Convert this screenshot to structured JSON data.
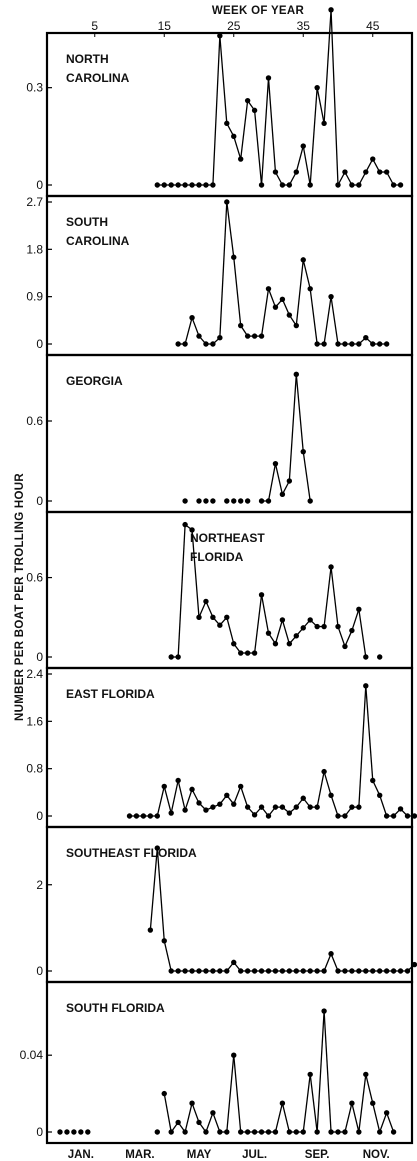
{
  "chart_data": {
    "type": "line",
    "top_axis": {
      "title": "WEEK OF YEAR",
      "ticks": [
        {
          "label": "5",
          "week": 5
        },
        {
          "label": "15",
          "week": 15
        },
        {
          "label": "25",
          "week": 25
        },
        {
          "label": "35",
          "week": 35
        },
        {
          "label": "45",
          "week": 45
        }
      ]
    },
    "bottom_axis": {
      "ticks": [
        {
          "label": "JAN.",
          "week": 3
        },
        {
          "label": "MAR.",
          "week": 11.5
        },
        {
          "label": "MAY",
          "week": 20
        },
        {
          "label": "JUL.",
          "week": 28
        },
        {
          "label": "SEP.",
          "week": 37
        },
        {
          "label": "NOV.",
          "week": 45.5
        }
      ]
    },
    "ylabel": "NUMBER PER BOAT PER TROLLING HOUR",
    "xlim": [
      0,
      52
    ],
    "panels": [
      {
        "name_lines": [
          "NORTH",
          "CAROLINA"
        ],
        "ylim": [
          0,
          0.45
        ],
        "yticks": [
          {
            "value": 0,
            "label": "0"
          },
          {
            "value": 0.3,
            "label": "0.3"
          }
        ],
        "x": [
          14,
          15,
          16,
          17,
          18,
          19,
          20,
          21,
          22,
          23,
          24,
          25,
          26,
          27,
          28,
          29,
          30,
          31,
          32,
          33,
          34,
          35,
          36,
          37,
          38,
          39,
          40,
          41,
          42,
          43,
          44,
          45,
          46,
          47,
          48,
          49
        ],
        "y": [
          0,
          0,
          0,
          0,
          0,
          0,
          0,
          0,
          0,
          0.46,
          0.19,
          0.15,
          0.08,
          0.26,
          0.23,
          0,
          0.33,
          0.04,
          0,
          0,
          0.04,
          0.12,
          0,
          0.3,
          0.19,
          0.54,
          0,
          0.04,
          0,
          0,
          0.04,
          0.08,
          0.04,
          0.04,
          0,
          0
        ],
        "breaks": []
      },
      {
        "name_lines": [
          "SOUTH",
          "CAROLINA"
        ],
        "ylim": [
          0,
          2.7
        ],
        "yticks": [
          {
            "value": 0,
            "label": "0"
          },
          {
            "value": 0.9,
            "label": "0.9"
          },
          {
            "value": 1.8,
            "label": "1.8"
          },
          {
            "value": 2.7,
            "label": "2.7"
          }
        ],
        "x": [
          17,
          18,
          19,
          20,
          21,
          22,
          23,
          24,
          25,
          26,
          27,
          28,
          29,
          30,
          31,
          32,
          33,
          34,
          35,
          36,
          37,
          38,
          39,
          40,
          41,
          42,
          43,
          44,
          45,
          46,
          47
        ],
        "y": [
          0,
          0,
          0.5,
          0.15,
          0,
          0,
          0.12,
          2.7,
          1.65,
          0.35,
          0.15,
          0.15,
          0.15,
          1.05,
          0.7,
          0.85,
          0.55,
          0.35,
          1.6,
          1.05,
          0,
          0,
          0.9,
          0,
          0,
          0,
          0,
          0.12,
          0,
          0,
          0
        ],
        "breaks": []
      },
      {
        "name_lines": [
          "GEORGIA"
        ],
        "ylim": [
          0,
          1.05
        ],
        "yticks": [
          {
            "value": 0,
            "label": "0"
          },
          {
            "value": 0.6,
            "label": "0.6"
          }
        ],
        "x": [
          18,
          20,
          21,
          22,
          24,
          25,
          26,
          27,
          29,
          30,
          31,
          32,
          33,
          34,
          35,
          36
        ],
        "y": [
          0,
          0,
          0,
          0,
          0,
          0,
          0,
          0,
          0,
          0,
          0.28,
          0.05,
          0.15,
          0.95,
          0.37,
          0
        ],
        "breaks": [
          18,
          20,
          21,
          22,
          24,
          25,
          26,
          27
        ]
      },
      {
        "name_lines": [
          "NORTHEAST",
          "FLORIDA"
        ],
        "ylim": [
          0,
          1.05
        ],
        "yticks": [
          {
            "value": 0,
            "label": "0"
          },
          {
            "value": 0.6,
            "label": "0.6"
          }
        ],
        "x": [
          16,
          17,
          18,
          19,
          20,
          21,
          22,
          23,
          24,
          25,
          26,
          27,
          28,
          29,
          30,
          31,
          32,
          33,
          34,
          35,
          36,
          37,
          38,
          39,
          40,
          41,
          42,
          43,
          44,
          46
        ],
        "y": [
          0,
          0,
          1.0,
          0.96,
          0.3,
          0.42,
          0.3,
          0.24,
          0.3,
          0.1,
          0.03,
          0.03,
          0.03,
          0.47,
          0.18,
          0.1,
          0.28,
          0.1,
          0.16,
          0.22,
          0.28,
          0.23,
          0.23,
          0.68,
          0.23,
          0.08,
          0.2,
          0.36,
          0,
          0
        ],
        "breaks": [
          46
        ]
      },
      {
        "name_lines": [
          "EAST FLORIDA"
        ],
        "ylim": [
          0,
          2.4
        ],
        "yticks": [
          {
            "value": 0,
            "label": "0"
          },
          {
            "value": 0.8,
            "label": "0.8"
          },
          {
            "value": 1.6,
            "label": "1.6"
          },
          {
            "value": 2.4,
            "label": "2.4"
          }
        ],
        "x": [
          10,
          11,
          12,
          13,
          14,
          15,
          16,
          17,
          18,
          19,
          20,
          21,
          22,
          23,
          24,
          25,
          26,
          27,
          28,
          29,
          30,
          31,
          32,
          33,
          34,
          35,
          36,
          37,
          38,
          39,
          40,
          41,
          42,
          43,
          44,
          45,
          46,
          47,
          48,
          49,
          50,
          51
        ],
        "y": [
          0,
          0,
          0,
          0,
          0,
          0.5,
          0.05,
          0.6,
          0.1,
          0.45,
          0.22,
          0.1,
          0.15,
          0.2,
          0.35,
          0.2,
          0.5,
          0.15,
          0.02,
          0.15,
          0,
          0.15,
          0.15,
          0.05,
          0.15,
          0.3,
          0.15,
          0.15,
          0.75,
          0.35,
          0,
          0,
          0.15,
          0.15,
          2.2,
          0.6,
          0.35,
          0,
          0,
          0.12,
          0,
          0
        ],
        "breaks": []
      },
      {
        "name_lines": [
          "SOUTHEAST FLORIDA"
        ],
        "ylim": [
          0,
          3.2
        ],
        "yticks": [
          {
            "value": 0,
            "label": "0"
          },
          {
            "value": 2,
            "label": "2"
          }
        ],
        "x": [
          13,
          14,
          15,
          16,
          17,
          18,
          19,
          20,
          21,
          22,
          23,
          24,
          25,
          26,
          27,
          28,
          29,
          30,
          31,
          32,
          33,
          34,
          35,
          36,
          37,
          38,
          39,
          40,
          41,
          42,
          43,
          44,
          45,
          46,
          47,
          48,
          49,
          50,
          51
        ],
        "y": [
          0.95,
          2.85,
          0.7,
          0,
          0,
          0,
          0,
          0,
          0,
          0,
          0,
          0,
          0.2,
          0,
          0,
          0,
          0,
          0,
          0,
          0,
          0,
          0,
          0,
          0,
          0,
          0,
          0.4,
          0,
          0,
          0,
          0,
          0,
          0,
          0,
          0,
          0,
          0,
          0,
          0.15
        ],
        "breaks": []
      },
      {
        "name_lines": [
          "SOUTH  FLORIDA"
        ],
        "ylim": [
          0,
          0.075
        ],
        "yticks": [
          {
            "value": 0,
            "label": "0"
          },
          {
            "value": 0.04,
            "label": "0.04"
          }
        ],
        "x": [
          0,
          1,
          2,
          3,
          4,
          14,
          15,
          16,
          17,
          18,
          19,
          20,
          21,
          22,
          23,
          24,
          25,
          26,
          27,
          28,
          29,
          30,
          31,
          32,
          33,
          34,
          35,
          36,
          37,
          38,
          39,
          40,
          41,
          42,
          43,
          44,
          45,
          46,
          47,
          48
        ],
        "y": [
          0,
          0,
          0,
          0,
          0,
          0,
          0.02,
          0,
          0.005,
          0,
          0.015,
          0.005,
          0,
          0.01,
          0,
          0,
          0.04,
          0,
          0,
          0,
          0,
          0,
          0,
          0.015,
          0,
          0,
          0,
          0.03,
          0,
          0.063,
          0,
          0,
          0,
          0.015,
          0,
          0.03,
          0.015,
          0,
          0.01,
          0
        ],
        "breaks": [
          0,
          1,
          2,
          3,
          4,
          14
        ]
      }
    ]
  }
}
